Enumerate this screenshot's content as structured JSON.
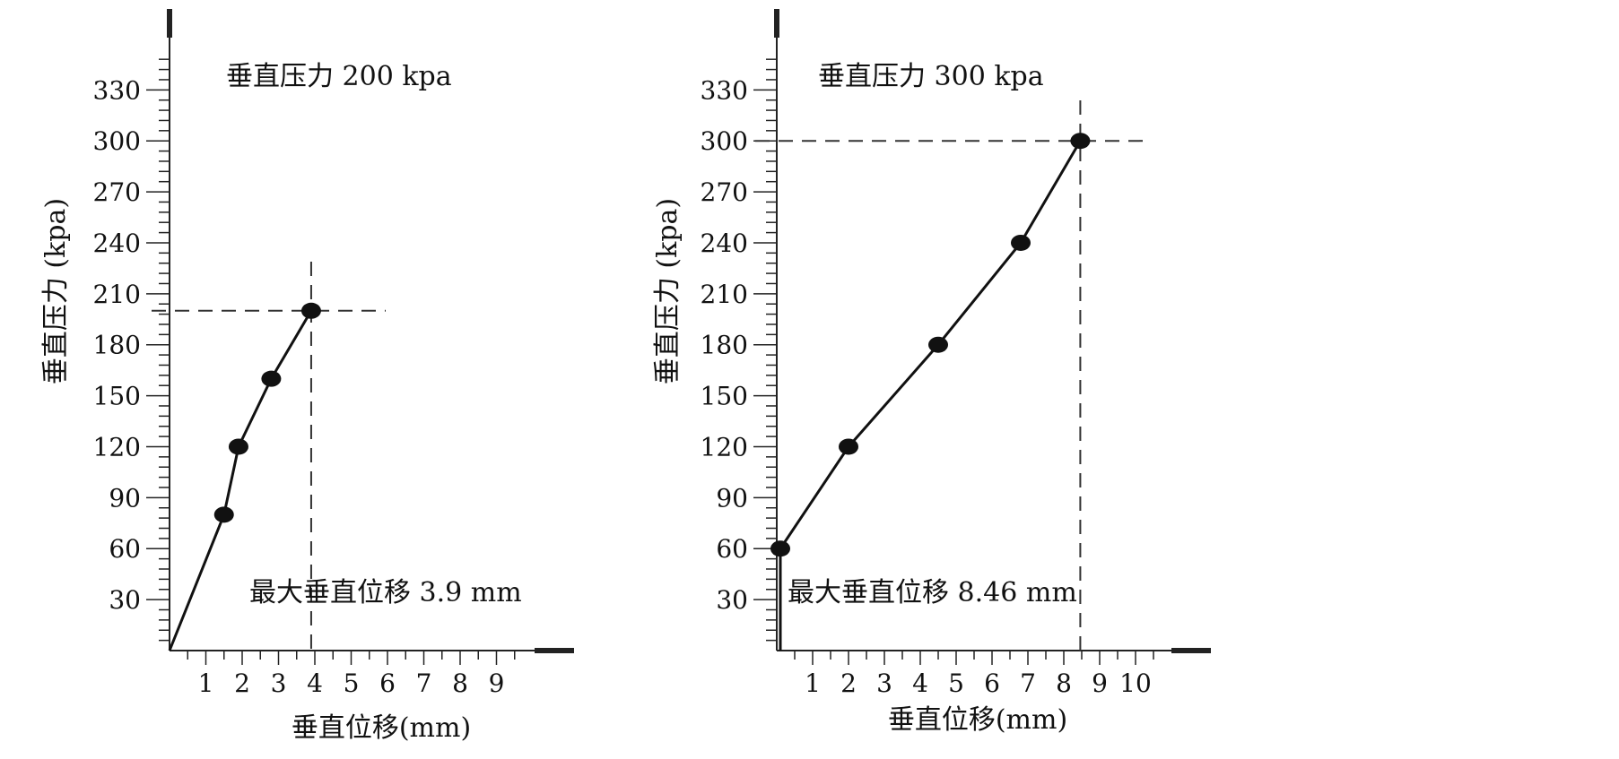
{
  "chart_data": [
    {
      "type": "line",
      "title": "垂直压力  200 kpa",
      "xlabel": "垂直位移(mm)",
      "ylabel": "垂直压力 (kpa)",
      "xlim": [
        0,
        10
      ],
      "ylim": [
        0,
        350
      ],
      "x_ticks": [
        1,
        2,
        3,
        4,
        5,
        6,
        7,
        8,
        9
      ],
      "y_ticks": [
        30,
        60,
        90,
        120,
        150,
        180,
        210,
        240,
        270,
        300,
        330
      ],
      "grid": false,
      "series": [
        {
          "x": [
            0,
            1.5,
            1.9,
            2.8,
            3.9
          ],
          "y": [
            0,
            80,
            120,
            160,
            200
          ],
          "markers": [
            false,
            true,
            true,
            true,
            true
          ]
        }
      ],
      "ref_x": 3.9,
      "ref_y": 200,
      "annotation": "最大垂直位移  3.9 mm",
      "colors": {
        "line": "#111111",
        "axis": "#222222",
        "dash": "#333333"
      }
    },
    {
      "type": "line",
      "title": "垂直压力  300 kpa",
      "xlabel": "垂直位移(mm)",
      "ylabel": "垂直压力 (kpa)",
      "xlim": [
        0,
        11
      ],
      "ylim": [
        0,
        350
      ],
      "x_ticks": [
        1,
        2,
        3,
        4,
        5,
        6,
        7,
        8,
        9,
        10
      ],
      "y_ticks": [
        30,
        60,
        90,
        120,
        150,
        180,
        210,
        240,
        270,
        300,
        330
      ],
      "grid": false,
      "series": [
        {
          "x": [
            0.1,
            0.1,
            2,
            4.5,
            6.8,
            8.46
          ],
          "y": [
            0,
            60,
            120,
            180,
            240,
            300
          ],
          "markers": [
            false,
            true,
            true,
            true,
            true,
            true
          ]
        }
      ],
      "ref_x": 8.46,
      "ref_y": 300,
      "annotation": "最大垂直位移  8.46 mm",
      "colors": {
        "line": "#111111",
        "axis": "#222222",
        "dash": "#333333"
      }
    }
  ]
}
